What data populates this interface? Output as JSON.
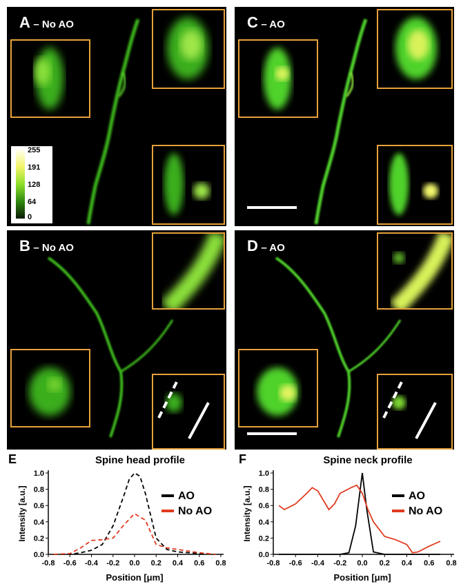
{
  "panels": {
    "A": {
      "letter": "A",
      "label": "No AO"
    },
    "B": {
      "letter": "B",
      "label": "No AO"
    },
    "C": {
      "letter": "C",
      "label": "AO"
    },
    "D": {
      "letter": "D",
      "label": "AO"
    }
  },
  "colorbar": {
    "ticks": [
      "255",
      "191",
      "128",
      "64",
      "0"
    ]
  },
  "colors": {
    "inset_border": "#e8a23a",
    "ao_line": "#000000",
    "no_ao_line": "#e03a1e",
    "image_green": "#3fbf1f"
  },
  "chart_data": [
    {
      "type": "line",
      "panel_letter": "E",
      "title": "Spine head profile",
      "xlabel": "Position [μm]",
      "ylabel": "Intensity [a.u.]",
      "xlim": [
        -0.8,
        0.8
      ],
      "ylim": [
        0,
        1.0
      ],
      "xticks": [
        "-0.8",
        "-0.6",
        "-0.4",
        "-0.2",
        "0.0",
        "0.2",
        "0.4",
        "0.6",
        "0.8"
      ],
      "yticks": [
        "0.0",
        "0.2",
        "0.4",
        "0.6",
        "0.8",
        "1.0"
      ],
      "line_style": "dashed",
      "series": [
        {
          "name": "AO",
          "color": "#000000",
          "x": [
            -0.75,
            -0.6,
            -0.5,
            -0.4,
            -0.3,
            -0.2,
            -0.1,
            -0.05,
            0.0,
            0.05,
            0.1,
            0.2,
            0.3,
            0.4,
            0.5,
            0.6,
            0.75
          ],
          "y": [
            0.0,
            0.0,
            0.02,
            0.05,
            0.12,
            0.35,
            0.72,
            0.92,
            1.0,
            0.96,
            0.75,
            0.2,
            0.06,
            0.03,
            0.02,
            0.01,
            0.0
          ]
        },
        {
          "name": "No AO",
          "color": "#e03a1e",
          "x": [
            -0.75,
            -0.6,
            -0.5,
            -0.4,
            -0.3,
            -0.2,
            -0.1,
            0.0,
            0.1,
            0.2,
            0.3,
            0.4,
            0.5,
            0.6,
            0.75
          ],
          "y": [
            0.0,
            0.01,
            0.08,
            0.17,
            0.18,
            0.2,
            0.36,
            0.5,
            0.42,
            0.12,
            0.08,
            0.06,
            0.04,
            0.02,
            0.0
          ]
        }
      ]
    },
    {
      "type": "line",
      "panel_letter": "F",
      "title": "Spine neck profile",
      "xlabel": "Position [μm]",
      "ylabel": "Intensity [a.u.]",
      "xlim": [
        -0.8,
        0.8
      ],
      "ylim": [
        0,
        1.0
      ],
      "xticks": [
        "-0.8",
        "-0.6",
        "-0.4",
        "-0.2",
        "0.0",
        "0.2",
        "0.4",
        "0.6",
        "0.8"
      ],
      "yticks": [
        "0.0",
        "0.2",
        "0.4",
        "0.6",
        "0.8",
        "1.0"
      ],
      "line_style": "solid",
      "series": [
        {
          "name": "AO",
          "color": "#000000",
          "x": [
            -0.75,
            -0.4,
            -0.2,
            -0.12,
            -0.06,
            0.0,
            0.04,
            0.1,
            0.2,
            0.5,
            0.7
          ],
          "y": [
            0.0,
            0.0,
            0.0,
            0.02,
            0.35,
            1.0,
            0.55,
            0.03,
            0.0,
            0.0,
            0.0
          ]
        },
        {
          "name": "No AO",
          "color": "#e03a1e",
          "x": [
            -0.75,
            -0.7,
            -0.6,
            -0.5,
            -0.45,
            -0.4,
            -0.3,
            -0.25,
            -0.2,
            -0.1,
            -0.05,
            0.0,
            0.05,
            0.1,
            0.2,
            0.3,
            0.4,
            0.45,
            0.5,
            0.6,
            0.7
          ],
          "y": [
            0.6,
            0.55,
            0.62,
            0.75,
            0.82,
            0.78,
            0.55,
            0.62,
            0.75,
            0.82,
            0.85,
            0.75,
            0.55,
            0.4,
            0.22,
            0.18,
            0.12,
            0.02,
            0.03,
            0.1,
            0.16
          ]
        }
      ]
    }
  ]
}
